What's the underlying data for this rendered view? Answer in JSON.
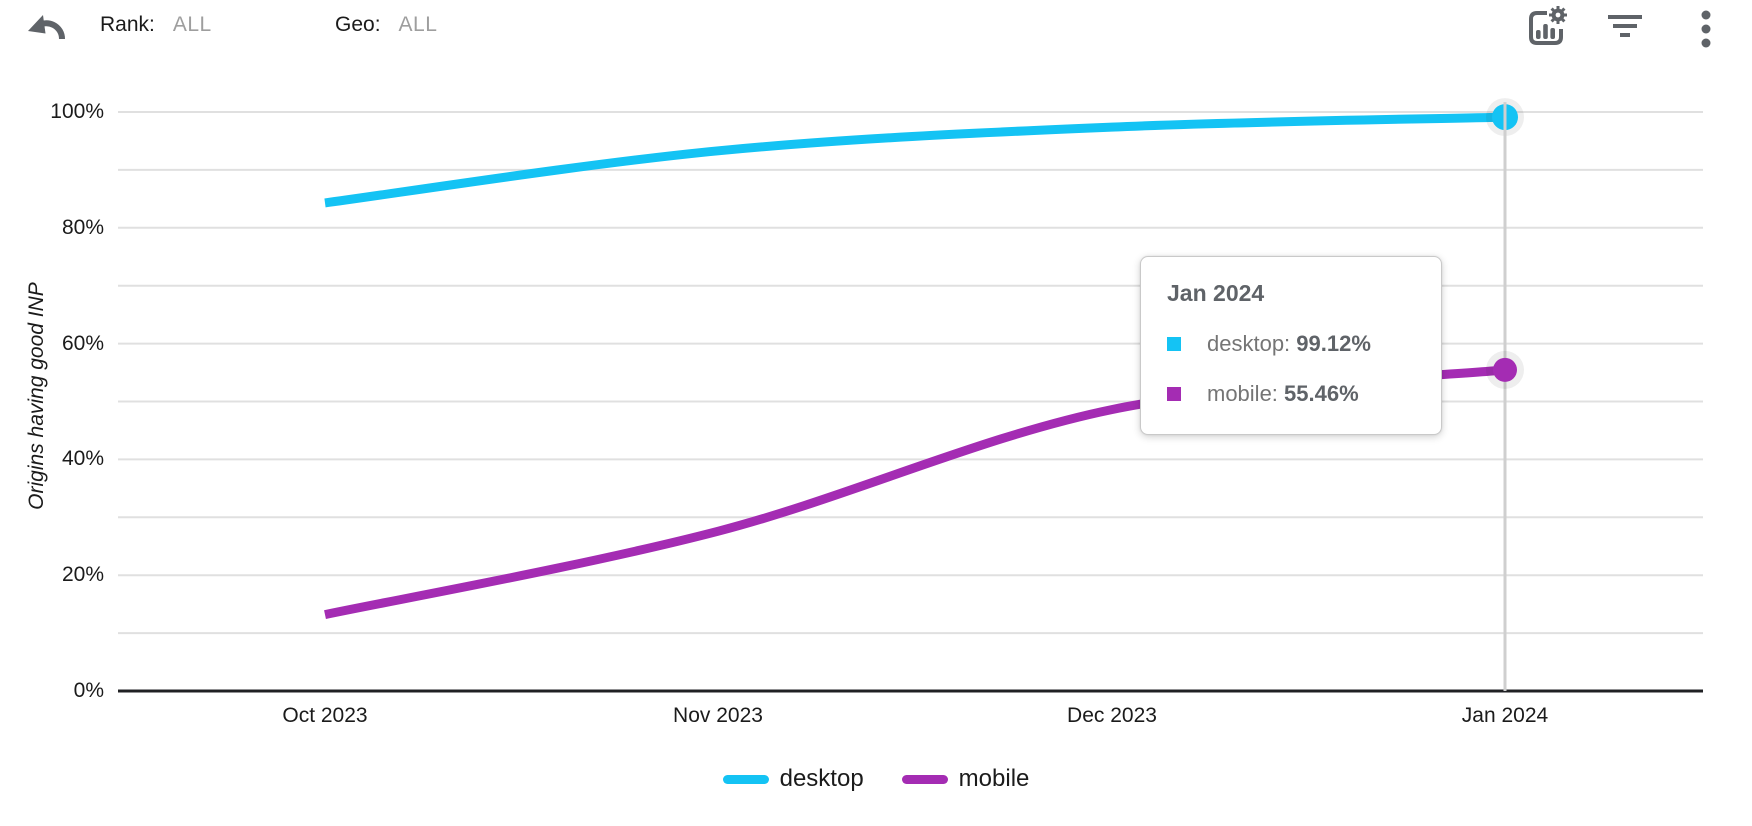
{
  "header": {
    "rank_label": "Rank:",
    "rank_value": "ALL",
    "geo_label": "Geo:",
    "geo_value": "ALL",
    "icons": [
      "undo-icon",
      "chart-settings-icon",
      "filter-icon",
      "more-vertical-icon"
    ]
  },
  "chart_data": {
    "type": "line",
    "title": "",
    "xlabel": "",
    "ylabel": "Origins having good INP",
    "x_labels": [
      "Oct 2023",
      "Nov 2023",
      "Dec 2023",
      "Jan 2024"
    ],
    "y_tick_labels": [
      "100%",
      "80%",
      "60%",
      "40%",
      "20%",
      "0%"
    ],
    "ylim": [
      0,
      100
    ],
    "y_minor_step": 10,
    "grid": true,
    "legend_position": "bottom",
    "highlighted_x": "Jan 2024",
    "series": [
      {
        "name": "desktop",
        "color": "#14C3F4",
        "values": [
          84.3,
          93.3,
          97.4,
          99.12
        ]
      },
      {
        "name": "mobile",
        "color": "#A42CB3",
        "values": [
          13.2,
          27.6,
          48.6,
          55.46
        ]
      }
    ]
  },
  "tooltip": {
    "title": "Jan 2024",
    "rows": [
      {
        "label": "desktop: ",
        "value": "99.12%",
        "color": "#14C3F4"
      },
      {
        "label": "mobile: ",
        "value": "55.46%",
        "color": "#A42CB3"
      }
    ]
  },
  "legend": {
    "items": [
      {
        "label": "desktop",
        "color": "#14C3F4"
      },
      {
        "label": "mobile",
        "color": "#A42CB3"
      }
    ]
  },
  "colors": {
    "grid": "#E0E0E0",
    "axis": "#202124",
    "crosshair": "#CFCFCF",
    "icon": "#5F6368"
  }
}
